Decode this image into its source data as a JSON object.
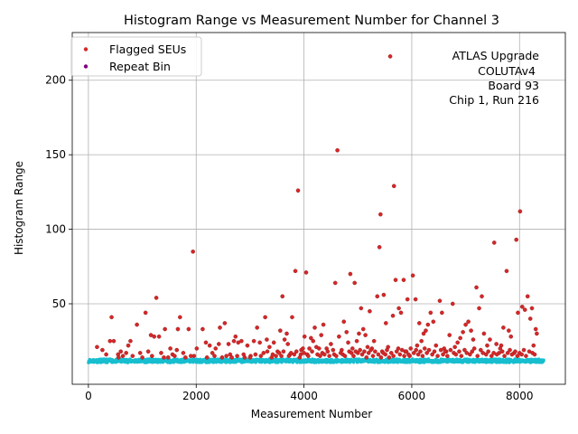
{
  "chart_data": {
    "type": "scatter",
    "title": "Histogram Range vs Measurement Number for Channel 3",
    "xlabel": "Measurement Number",
    "ylabel": "Histogram Range",
    "xlim": [
      -300,
      8850
    ],
    "ylim": [
      -4,
      232
    ],
    "xticks": [
      0,
      2000,
      4000,
      6000,
      8000
    ],
    "yticks": [
      50,
      100,
      150,
      200
    ],
    "grid": true,
    "legend_position": "upper-left",
    "legend": [
      {
        "label": "Flagged SEUs",
        "color": "#d62728"
      },
      {
        "label": "Repeat Bin",
        "color": "#800080"
      }
    ],
    "annotation": [
      "ATLAS Upgrade",
      "COLUTAv4",
      "Board 93",
      "Chip 1, Run 216"
    ],
    "baseline_series": {
      "color": "#17becf",
      "x_range": [
        0,
        8450
      ],
      "y_range": [
        10.5,
        13.0
      ]
    },
    "series": [
      {
        "name": "Flagged SEUs",
        "color": "#d62728",
        "points": [
          [
            160,
            21
          ],
          [
            260,
            19
          ],
          [
            330,
            16
          ],
          [
            400,
            25
          ],
          [
            430,
            41
          ],
          [
            470,
            25
          ],
          [
            550,
            16
          ],
          [
            600,
            18
          ],
          [
            640,
            15
          ],
          [
            700,
            17
          ],
          [
            740,
            22
          ],
          [
            780,
            25
          ],
          [
            900,
            36
          ],
          [
            960,
            17
          ],
          [
            1060,
            44
          ],
          [
            1110,
            18
          ],
          [
            1160,
            29
          ],
          [
            1220,
            28
          ],
          [
            1260,
            54
          ],
          [
            1310,
            28
          ],
          [
            1350,
            17
          ],
          [
            1420,
            33
          ],
          [
            1480,
            14
          ],
          [
            1520,
            20
          ],
          [
            1560,
            16
          ],
          [
            1640,
            19
          ],
          [
            1660,
            33
          ],
          [
            1700,
            41
          ],
          [
            1760,
            17
          ],
          [
            1860,
            33
          ],
          [
            1940,
            85
          ],
          [
            1960,
            15
          ],
          [
            2010,
            20
          ],
          [
            2120,
            33
          ],
          [
            2180,
            24
          ],
          [
            2250,
            22
          ],
          [
            2300,
            17
          ],
          [
            2360,
            20
          ],
          [
            2420,
            23
          ],
          [
            2440,
            34
          ],
          [
            2530,
            37
          ],
          [
            2600,
            23
          ],
          [
            2630,
            16
          ],
          [
            2700,
            25
          ],
          [
            2730,
            28
          ],
          [
            2780,
            24
          ],
          [
            2840,
            25
          ],
          [
            2880,
            16
          ],
          [
            2950,
            22
          ],
          [
            3010,
            15
          ],
          [
            3070,
            25
          ],
          [
            3130,
            34
          ],
          [
            3180,
            24
          ],
          [
            3250,
            17
          ],
          [
            3280,
            41
          ],
          [
            3310,
            26
          ],
          [
            3360,
            21
          ],
          [
            3400,
            14
          ],
          [
            3440,
            24
          ],
          [
            3510,
            18
          ],
          [
            3560,
            32
          ],
          [
            3600,
            55
          ],
          [
            3640,
            26
          ],
          [
            3680,
            30
          ],
          [
            3700,
            23
          ],
          [
            3740,
            16
          ],
          [
            3780,
            41
          ],
          [
            3840,
            72
          ],
          [
            3890,
            126
          ],
          [
            3920,
            14
          ],
          [
            3950,
            19
          ],
          [
            3980,
            20
          ],
          [
            4010,
            28
          ],
          [
            4040,
            71
          ],
          [
            4060,
            16
          ],
          [
            4100,
            20
          ],
          [
            4130,
            27
          ],
          [
            4170,
            25
          ],
          [
            4200,
            34
          ],
          [
            4230,
            21
          ],
          [
            4280,
            20
          ],
          [
            4320,
            29
          ],
          [
            4360,
            36
          ],
          [
            4420,
            20
          ],
          [
            4470,
            15
          ],
          [
            4500,
            23
          ],
          [
            4540,
            19
          ],
          [
            4580,
            64
          ],
          [
            4620,
            153
          ],
          [
            4650,
            28
          ],
          [
            4700,
            19
          ],
          [
            4740,
            38
          ],
          [
            4790,
            31
          ],
          [
            4820,
            24
          ],
          [
            4860,
            70
          ],
          [
            4900,
            20
          ],
          [
            4940,
            64
          ],
          [
            4980,
            25
          ],
          [
            5020,
            30
          ],
          [
            5060,
            47
          ],
          [
            5100,
            33
          ],
          [
            5140,
            29
          ],
          [
            5180,
            21
          ],
          [
            5220,
            45
          ],
          [
            5260,
            20
          ],
          [
            5300,
            25
          ],
          [
            5360,
            55
          ],
          [
            5400,
            88
          ],
          [
            5420,
            110
          ],
          [
            5450,
            18
          ],
          [
            5480,
            56
          ],
          [
            5520,
            37
          ],
          [
            5560,
            21
          ],
          [
            5600,
            216
          ],
          [
            5650,
            42
          ],
          [
            5670,
            129
          ],
          [
            5700,
            66
          ],
          [
            5750,
            20
          ],
          [
            5760,
            47
          ],
          [
            5800,
            44
          ],
          [
            5850,
            66
          ],
          [
            5880,
            18
          ],
          [
            5920,
            53
          ],
          [
            5960,
            15
          ],
          [
            6020,
            69
          ],
          [
            6070,
            53
          ],
          [
            6100,
            22
          ],
          [
            6140,
            37
          ],
          [
            6180,
            25
          ],
          [
            6220,
            30
          ],
          [
            6260,
            32
          ],
          [
            6300,
            36
          ],
          [
            6350,
            44
          ],
          [
            6400,
            38
          ],
          [
            6450,
            22
          ],
          [
            6520,
            52
          ],
          [
            6560,
            44
          ],
          [
            6600,
            20
          ],
          [
            6640,
            18
          ],
          [
            6700,
            29
          ],
          [
            6760,
            50
          ],
          [
            6800,
            21
          ],
          [
            6850,
            24
          ],
          [
            6900,
            27
          ],
          [
            6950,
            31
          ],
          [
            7000,
            36
          ],
          [
            7050,
            38
          ],
          [
            7100,
            32
          ],
          [
            7140,
            26
          ],
          [
            7200,
            61
          ],
          [
            7250,
            47
          ],
          [
            7300,
            55
          ],
          [
            7340,
            30
          ],
          [
            7400,
            22
          ],
          [
            7450,
            26
          ],
          [
            7530,
            91
          ],
          [
            7570,
            23
          ],
          [
            7620,
            17
          ],
          [
            7660,
            22
          ],
          [
            7700,
            34
          ],
          [
            7760,
            72
          ],
          [
            7800,
            32
          ],
          [
            7840,
            28
          ],
          [
            7900,
            17
          ],
          [
            7940,
            93
          ],
          [
            7970,
            44
          ],
          [
            8010,
            112
          ],
          [
            8050,
            48
          ],
          [
            8100,
            46
          ],
          [
            8150,
            55
          ],
          [
            8200,
            40
          ],
          [
            8230,
            47
          ],
          [
            8260,
            22
          ],
          [
            8300,
            33
          ],
          [
            8320,
            30
          ],
          [
            5000,
            17
          ],
          [
            5040,
            19
          ],
          [
            5080,
            16
          ],
          [
            5120,
            18
          ],
          [
            5160,
            14
          ],
          [
            5200,
            17
          ],
          [
            5240,
            19
          ],
          [
            5280,
            15
          ],
          [
            5320,
            18
          ],
          [
            5380,
            16
          ],
          [
            5430,
            14
          ],
          [
            5470,
            17
          ],
          [
            5510,
            16
          ],
          [
            5540,
            19
          ],
          [
            5580,
            14
          ],
          [
            5620,
            17
          ],
          [
            5660,
            15
          ],
          [
            5720,
            18
          ],
          [
            5780,
            16
          ],
          [
            5820,
            19
          ],
          [
            5860,
            15
          ],
          [
            5900,
            18
          ],
          [
            5940,
            16
          ],
          [
            5980,
            20
          ],
          [
            6040,
            17
          ],
          [
            6080,
            19
          ],
          [
            6120,
            16
          ],
          [
            6160,
            18
          ],
          [
            6200,
            15
          ],
          [
            6240,
            20
          ],
          [
            6280,
            17
          ],
          [
            6320,
            19
          ],
          [
            6380,
            16
          ],
          [
            6420,
            18
          ],
          [
            6480,
            15
          ],
          [
            6540,
            19
          ],
          [
            6580,
            16
          ],
          [
            6620,
            18
          ],
          [
            6660,
            15
          ],
          [
            6720,
            19
          ],
          [
            6780,
            17
          ],
          [
            6820,
            16
          ],
          [
            6880,
            18
          ],
          [
            6920,
            15
          ],
          [
            6980,
            19
          ],
          [
            7020,
            17
          ],
          [
            7080,
            16
          ],
          [
            7120,
            18
          ],
          [
            7160,
            20
          ],
          [
            7220,
            15
          ],
          [
            7280,
            19
          ],
          [
            7320,
            17
          ],
          [
            7380,
            16
          ],
          [
            7420,
            18
          ],
          [
            7480,
            15
          ],
          [
            7520,
            17
          ],
          [
            7580,
            16
          ],
          [
            7640,
            20
          ],
          [
            7680,
            18
          ],
          [
            7720,
            15
          ],
          [
            7780,
            17
          ],
          [
            7820,
            19
          ],
          [
            7860,
            16
          ],
          [
            7920,
            18
          ],
          [
            7960,
            15
          ],
          [
            8000,
            17
          ],
          [
            8040,
            16
          ],
          [
            8080,
            19
          ],
          [
            8120,
            15
          ],
          [
            8180,
            18
          ],
          [
            8240,
            17
          ],
          [
            8280,
            16
          ],
          [
            3000,
            14
          ],
          [
            3100,
            16
          ],
          [
            3200,
            15
          ],
          [
            3320,
            18
          ],
          [
            3420,
            16
          ],
          [
            3480,
            15
          ],
          [
            3540,
            17
          ],
          [
            3580,
            15
          ],
          [
            3620,
            18
          ],
          [
            3720,
            15
          ],
          [
            3760,
            17
          ],
          [
            3820,
            16
          ],
          [
            3860,
            18
          ],
          [
            3940,
            16
          ],
          [
            4000,
            17
          ],
          [
            4080,
            15
          ],
          [
            4150,
            18
          ],
          [
            4250,
            16
          ],
          [
            4300,
            15
          ],
          [
            4340,
            17
          ],
          [
            4380,
            16
          ],
          [
            4440,
            18
          ],
          [
            4560,
            16
          ],
          [
            4600,
            15
          ],
          [
            4680,
            17
          ],
          [
            4720,
            16
          ],
          [
            4760,
            15
          ],
          [
            4840,
            18
          ],
          [
            4880,
            17
          ],
          [
            4920,
            15
          ],
          [
            4960,
            18
          ],
          [
            2200,
            14
          ],
          [
            2340,
            15
          ],
          [
            2480,
            14
          ],
          [
            2560,
            15
          ],
          [
            2660,
            14
          ],
          [
            2760,
            15
          ],
          [
            2900,
            14
          ],
          [
            560,
            14
          ],
          [
            820,
            15
          ],
          [
            1000,
            14
          ],
          [
            1180,
            15
          ],
          [
            1400,
            14
          ],
          [
            1600,
            15
          ],
          [
            1800,
            14
          ],
          [
            1900,
            15
          ]
        ]
      },
      {
        "name": "Repeat Bin",
        "color": "#800080",
        "points": []
      }
    ]
  }
}
